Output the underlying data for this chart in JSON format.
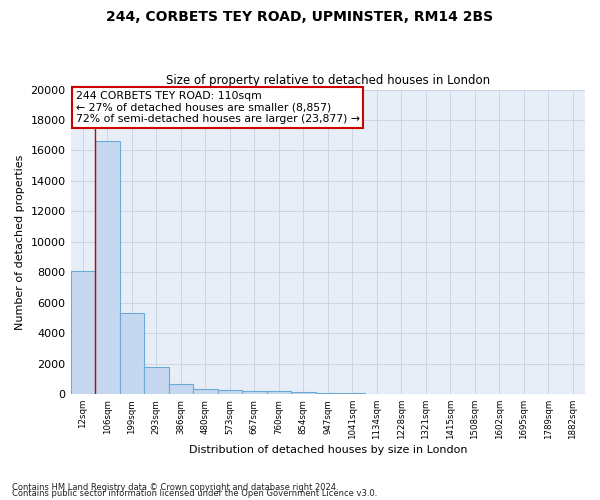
{
  "title1": "244, CORBETS TEY ROAD, UPMINSTER, RM14 2BS",
  "title2": "Size of property relative to detached houses in London",
  "xlabel": "Distribution of detached houses by size in London",
  "ylabel": "Number of detached properties",
  "bar_categories": [
    "12sqm",
    "106sqm",
    "199sqm",
    "293sqm",
    "386sqm",
    "480sqm",
    "573sqm",
    "667sqm",
    "760sqm",
    "854sqm",
    "947sqm",
    "1041sqm",
    "1134sqm",
    "1228sqm",
    "1321sqm",
    "1415sqm",
    "1508sqm",
    "1602sqm",
    "1695sqm",
    "1789sqm",
    "1882sqm"
  ],
  "bar_values": [
    8100,
    16600,
    5300,
    1800,
    700,
    350,
    270,
    230,
    200,
    130,
    80,
    60,
    40,
    30,
    25,
    20,
    15,
    12,
    10,
    8,
    5
  ],
  "bar_color": "#c5d8f0",
  "bar_edge_color": "#6aaad4",
  "ylim": [
    0,
    20000
  ],
  "yticks": [
    0,
    2000,
    4000,
    6000,
    8000,
    10000,
    12000,
    14000,
    16000,
    18000,
    20000
  ],
  "red_line_x": 0.5,
  "annotation_line1": "244 CORBETS TEY ROAD: 110sqm",
  "annotation_line2": "← 27% of detached houses are smaller (8,857)",
  "annotation_line3": "72% of semi-detached houses are larger (23,877) →",
  "footnote1": "Contains HM Land Registry data © Crown copyright and database right 2024.",
  "footnote2": "Contains public sector information licensed under the Open Government Licence v3.0.",
  "plot_bg_color": "#e8eef8",
  "grid_color": "#c8d0e0"
}
